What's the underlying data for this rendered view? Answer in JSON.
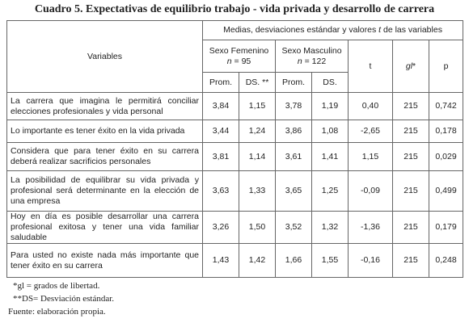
{
  "title": "Cuadro 5. Expectativas de equilibrio trabajo - vida privada y desarrollo de carrera",
  "header": {
    "variables": "Variables",
    "medias_pre": "Medias, desviaciones estándar y valores",
    "medias_t": "t",
    "medias_post": "de las variables",
    "female": {
      "label": "Sexo Femenino",
      "n": "n",
      "count": "= 95"
    },
    "male": {
      "label": "Sexo Masculino",
      "n": "n",
      "count": "= 122"
    },
    "t": "t",
    "gl": "gl",
    "gl_mark": "*",
    "p": "p",
    "sub": [
      "Prom.",
      "DS. **",
      "Prom.",
      "DS."
    ]
  },
  "table": {
    "rows": [
      [
        "La carrera que imagina le permitirá conciliar elecciones profesionales y vida personal",
        "3,84",
        "1,15",
        "3,78",
        "1,19",
        "0,40",
        "215",
        "0,742"
      ],
      [
        "Lo importante es tener éxito en la vida privada",
        "3,44",
        "1,24",
        "3,86",
        "1,08",
        "-2,65",
        "215",
        "0,178"
      ],
      [
        "Considera que para tener éxito en su carrera deberá realizar sacrificios personales",
        "3,81",
        "1,14",
        "3,61",
        "1,41",
        "1,15",
        "215",
        "0,029"
      ],
      [
        "La posibilidad de equilibrar su vida privada y profesional será determinante en la elección de una empresa",
        "3,63",
        "1,33",
        "3,65",
        "1,25",
        "-0,09",
        "215",
        "0,499"
      ],
      [
        "Hoy en día es posible desarrollar una carrera profesional exitosa y tener una vida familiar saludable",
        "3,26",
        "1,50",
        "3,52",
        "1,32",
        "-1,36",
        "215",
        "0,179"
      ],
      [
        "Para usted no existe nada más importante que tener éxito en su carrera",
        "1,43",
        "1,42",
        "1,66",
        "1,55",
        "-0,16",
        "215",
        "0,248"
      ]
    ]
  },
  "notes": [
    "*gl = grados de libertad.",
    "**DS= Desviación estándar.",
    "Fuente: elaboración propia."
  ]
}
